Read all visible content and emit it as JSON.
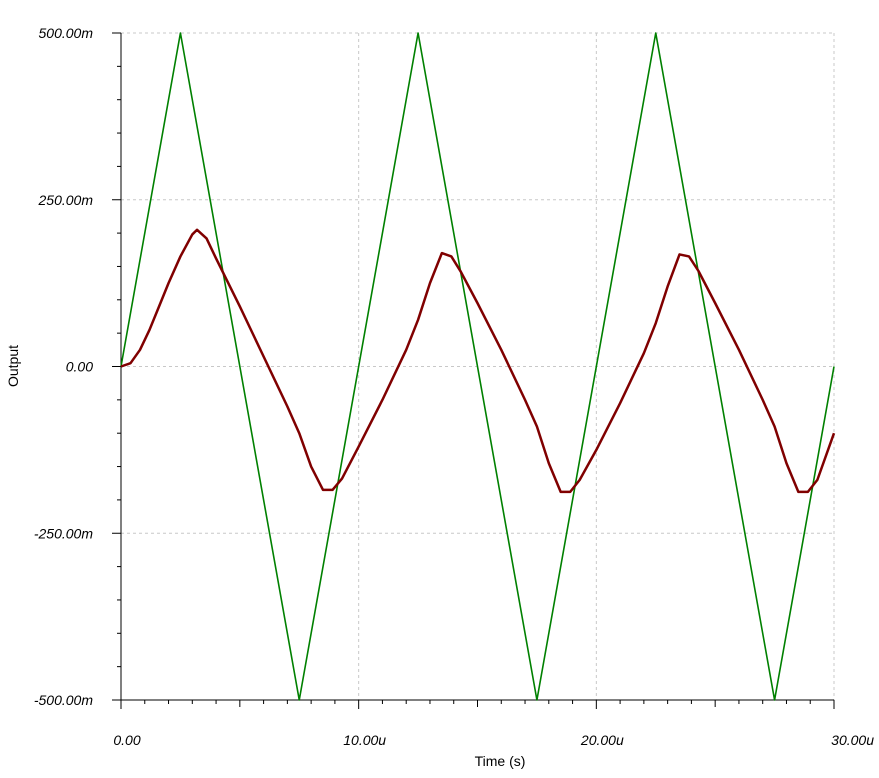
{
  "chart_data": {
    "type": "line",
    "title": "",
    "xlabel": "Time (s)",
    "ylabel": "Output",
    "xlim": [
      0,
      30
    ],
    "ylim": [
      -500,
      500
    ],
    "x_unit_suffix": "u",
    "y_unit_suffix": "m",
    "grid": true,
    "x_ticks": [
      0,
      10,
      20,
      30
    ],
    "x_tick_labels": [
      "0.00",
      "10.00u",
      "20.00u",
      "30.00u"
    ],
    "y_ticks": [
      500,
      250,
      0,
      -250,
      -500
    ],
    "y_tick_labels": [
      "500.00m",
      "250.00m",
      "0.00",
      "-250.00m",
      "-500.00m"
    ],
    "series": [
      {
        "color": "#008000",
        "x": [
          0,
          2.5,
          7.5,
          12.5,
          17.5,
          22.5,
          27.5,
          30
        ],
        "y": [
          0,
          500,
          -500,
          500,
          -500,
          500,
          -500,
          0
        ]
      },
      {
        "color": "#800000",
        "x": [
          0,
          0.4,
          0.8,
          1.2,
          1.6,
          2.0,
          2.5,
          3.0,
          3.2,
          3.6,
          4.0,
          5.0,
          6.0,
          7.0,
          7.5,
          8.0,
          8.5,
          8.9,
          9.3,
          10.0,
          11.0,
          12.0,
          12.5,
          13.0,
          13.5,
          13.9,
          14.3,
          15.0,
          16.0,
          17.0,
          17.5,
          18.0,
          18.5,
          18.9,
          19.3,
          20.0,
          21.0,
          22.0,
          22.5,
          23.0,
          23.5,
          23.9,
          24.3,
          25.0,
          26.0,
          27.0,
          27.5,
          28.0,
          28.5,
          28.9,
          29.3,
          30.0
        ],
        "y": [
          0,
          5,
          25,
          55,
          90,
          125,
          165,
          198,
          205,
          192,
          162,
          90,
          15,
          -60,
          -100,
          -150,
          -185,
          -185,
          -168,
          -120,
          -50,
          25,
          70,
          125,
          170,
          165,
          142,
          95,
          25,
          -50,
          -90,
          -145,
          -188,
          -188,
          -170,
          -125,
          -55,
          20,
          65,
          120,
          168,
          165,
          143,
          95,
          25,
          -50,
          -90,
          -145,
          -188,
          -188,
          -170,
          -100
        ]
      }
    ]
  }
}
